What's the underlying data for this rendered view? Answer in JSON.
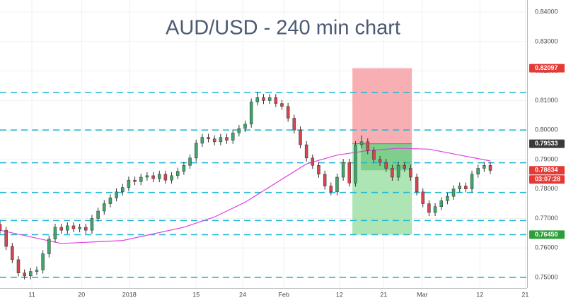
{
  "chart_data": {
    "type": "candlestick",
    "title": "AUD/USD - 240 min chart",
    "xlim": [
      0,
      86
    ],
    "ylim": [
      0.7464,
      0.8441
    ],
    "grid": true,
    "xticks": [
      {
        "value": 5.2,
        "label": "11"
      },
      {
        "value": 13.3,
        "label": "20"
      },
      {
        "value": 21.1,
        "label": "2018"
      },
      {
        "value": 32,
        "label": "15"
      },
      {
        "value": 39.6,
        "label": "24"
      },
      {
        "value": 46.3,
        "label": "Feb"
      },
      {
        "value": 55.4,
        "label": "12"
      },
      {
        "value": 62.6,
        "label": "21"
      },
      {
        "value": 68.9,
        "label": "Mar"
      },
      {
        "value": 78.3,
        "label": "12"
      },
      {
        "value": 85.7,
        "label": "21"
      }
    ],
    "yticks": [
      {
        "value": 0.84,
        "label": "0.84000"
      },
      {
        "value": 0.83,
        "label": "0.83000"
      },
      {
        "value": 0.82,
        "label": "0.82000"
      },
      {
        "value": 0.81,
        "label": "0.81000"
      },
      {
        "value": 0.8,
        "label": "0.80000"
      },
      {
        "value": 0.79,
        "label": "0.79000"
      },
      {
        "value": 0.78,
        "label": "0.78000"
      },
      {
        "value": 0.77,
        "label": "0.77000"
      },
      {
        "value": 0.76,
        "label": "0.76000"
      },
      {
        "value": 0.75,
        "label": "0.75000"
      }
    ],
    "candles": {
      "up_color": "#3fa66a",
      "down_color": "#d9434f",
      "wick_color": "#333333",
      "x": [
        0,
        1,
        2,
        3,
        4,
        5,
        6,
        7,
        8,
        9,
        10,
        11,
        12,
        13,
        14,
        15,
        16,
        17,
        18,
        19,
        20,
        21,
        22,
        23,
        24,
        25,
        26,
        27,
        28,
        29,
        30,
        31,
        32,
        33,
        34,
        35,
        36,
        37,
        38,
        39,
        40,
        41,
        42,
        43,
        44,
        45,
        46,
        47,
        48,
        49,
        50,
        51,
        52,
        53,
        54,
        55,
        56,
        57,
        58,
        59,
        60,
        61,
        62,
        63,
        64,
        65,
        66,
        67,
        68,
        69,
        70,
        71,
        72,
        73,
        74,
        75,
        76,
        77,
        78,
        79,
        80
      ],
      "open": [
        0.768,
        0.766,
        0.7605,
        0.756,
        0.7515,
        0.7505,
        0.752,
        0.7525,
        0.758,
        0.763,
        0.767,
        0.766,
        0.7675,
        0.7665,
        0.767,
        0.766,
        0.77,
        0.7725,
        0.775,
        0.777,
        0.779,
        0.7805,
        0.783,
        0.7825,
        0.784,
        0.7845,
        0.7835,
        0.785,
        0.783,
        0.7845,
        0.786,
        0.788,
        0.7905,
        0.7955,
        0.7975,
        0.797,
        0.796,
        0.7975,
        0.7965,
        0.799,
        0.8005,
        0.802,
        0.8095,
        0.811,
        0.81,
        0.811,
        0.809,
        0.808,
        0.804,
        0.8,
        0.795,
        0.7905,
        0.788,
        0.785,
        0.781,
        0.779,
        0.784,
        0.789,
        0.782,
        0.795,
        0.796,
        0.793,
        0.79,
        0.789,
        0.787,
        0.784,
        0.788,
        0.787,
        0.784,
        0.779,
        0.775,
        0.772,
        0.774,
        0.776,
        0.7775,
        0.78,
        0.781,
        0.78,
        0.785,
        0.787,
        0.788
      ],
      "high": [
        0.7692,
        0.7672,
        0.7617,
        0.7572,
        0.7527,
        0.7532,
        0.7537,
        0.7592,
        0.7642,
        0.7682,
        0.7682,
        0.7687,
        0.7687,
        0.7682,
        0.7682,
        0.7712,
        0.7737,
        0.7762,
        0.7782,
        0.7802,
        0.7817,
        0.7842,
        0.7842,
        0.7852,
        0.7857,
        0.7857,
        0.7862,
        0.7862,
        0.7857,
        0.7872,
        0.7892,
        0.7917,
        0.7967,
        0.7987,
        0.7987,
        0.7982,
        0.7987,
        0.7987,
        0.8002,
        0.8017,
        0.8032,
        0.8107,
        0.813,
        0.8122,
        0.8122,
        0.8122,
        0.8102,
        0.8092,
        0.8052,
        0.8012,
        0.7962,
        0.7917,
        0.7892,
        0.7862,
        0.7822,
        0.7852,
        0.7902,
        0.7902,
        0.7962,
        0.7982,
        0.7972,
        0.7942,
        0.7912,
        0.7902,
        0.7882,
        0.7892,
        0.7892,
        0.7882,
        0.7852,
        0.7802,
        0.7762,
        0.7752,
        0.7772,
        0.7787,
        0.7812,
        0.7822,
        0.7822,
        0.7862,
        0.7882,
        0.7892,
        0.7892
      ],
      "low": [
        0.7648,
        0.7593,
        0.7548,
        0.7503,
        0.7493,
        0.7493,
        0.7508,
        0.7513,
        0.7568,
        0.7618,
        0.7648,
        0.7648,
        0.7653,
        0.7653,
        0.7648,
        0.7648,
        0.7688,
        0.7713,
        0.7738,
        0.7758,
        0.7778,
        0.7793,
        0.7813,
        0.7813,
        0.7828,
        0.7823,
        0.7823,
        0.7818,
        0.7818,
        0.7833,
        0.7848,
        0.7868,
        0.7893,
        0.7943,
        0.7958,
        0.7948,
        0.7948,
        0.7953,
        0.7953,
        0.7978,
        0.7993,
        0.8008,
        0.8083,
        0.8088,
        0.8088,
        0.8078,
        0.8068,
        0.8028,
        0.7988,
        0.7938,
        0.7893,
        0.7868,
        0.7838,
        0.7798,
        0.7778,
        0.7778,
        0.7828,
        0.7808,
        0.7808,
        0.7938,
        0.7918,
        0.7888,
        0.7878,
        0.7858,
        0.7828,
        0.7828,
        0.7858,
        0.7828,
        0.7778,
        0.7738,
        0.7708,
        0.7708,
        0.7728,
        0.7748,
        0.7763,
        0.7788,
        0.7788,
        0.7788,
        0.7838,
        0.7858,
        0.7851
      ],
      "close": [
        0.766,
        0.7605,
        0.756,
        0.7515,
        0.7505,
        0.752,
        0.7525,
        0.758,
        0.763,
        0.767,
        0.766,
        0.7675,
        0.7665,
        0.767,
        0.766,
        0.77,
        0.7725,
        0.775,
        0.777,
        0.779,
        0.7805,
        0.783,
        0.7825,
        0.784,
        0.7845,
        0.7835,
        0.785,
        0.783,
        0.7845,
        0.786,
        0.788,
        0.7905,
        0.7955,
        0.7975,
        0.797,
        0.796,
        0.7975,
        0.7965,
        0.799,
        0.8005,
        0.802,
        0.8095,
        0.811,
        0.81,
        0.811,
        0.809,
        0.808,
        0.804,
        0.8,
        0.795,
        0.7905,
        0.788,
        0.785,
        0.781,
        0.779,
        0.784,
        0.789,
        0.782,
        0.795,
        0.796,
        0.793,
        0.79,
        0.789,
        0.787,
        0.784,
        0.788,
        0.787,
        0.784,
        0.779,
        0.775,
        0.772,
        0.774,
        0.776,
        0.7775,
        0.78,
        0.781,
        0.78,
        0.785,
        0.787,
        0.788,
        0.7863
      ]
    },
    "moving_average": {
      "color": "#e040e0",
      "x": [
        0,
        10,
        20,
        30,
        35,
        40,
        45,
        50,
        55,
        60,
        65,
        70,
        75,
        80
      ],
      "values": [
        0.766,
        0.7615,
        0.7625,
        0.767,
        0.7705,
        0.7755,
        0.782,
        0.7885,
        0.7915,
        0.793,
        0.7938,
        0.7935,
        0.7915,
        0.7895
      ]
    },
    "hlines": {
      "color": "#22b8d6",
      "values": [
        0.8127,
        0.8,
        0.7889,
        0.7788,
        0.7693,
        0.7645,
        0.75
      ]
    },
    "position": {
      "x": [
        57.5,
        67.2
      ],
      "stop": 0.82097,
      "entry": 0.79533,
      "target": 0.7645,
      "current": 0.78634,
      "stop_color": "#f7a1a6",
      "target_color": "#9fe0a8",
      "open_color": "#6cc47a"
    },
    "axis_markers": [
      {
        "value": 0.82097,
        "color": "#e53935"
      },
      {
        "value": 0.79533,
        "color": "#3a3a3a"
      },
      {
        "value": 0.78634,
        "color": "#e53935",
        "countdown": "03:07:28"
      },
      {
        "value": 0.7645,
        "label": "0.76450",
        "color": "#2e9e3a"
      }
    ]
  }
}
